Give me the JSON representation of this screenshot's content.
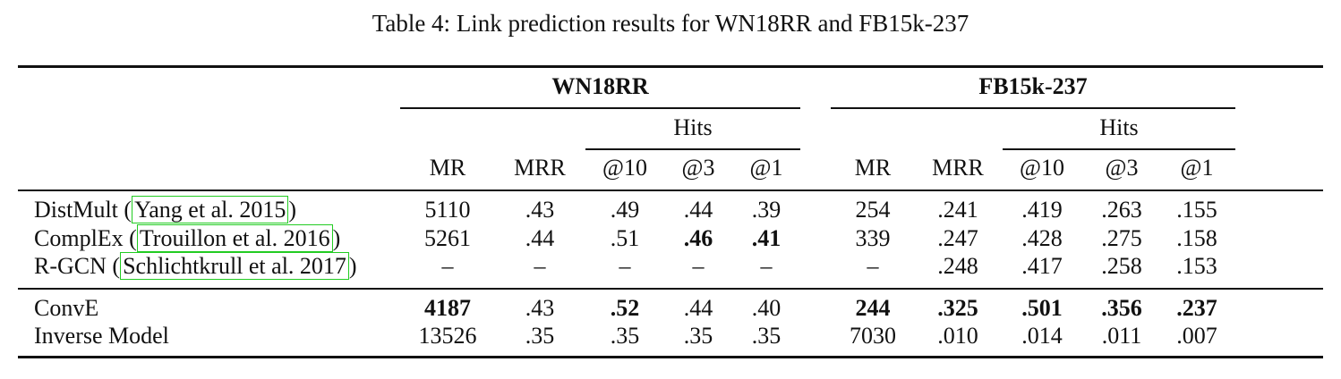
{
  "caption": "Table 4: Link prediction results for WN18RR and FB15k-237",
  "groups": [
    {
      "name": "WN18RR",
      "sub": "Hits"
    },
    {
      "name": "FB15k-237",
      "sub": "Hits"
    }
  ],
  "columns": [
    "MR",
    "MRR",
    "@10",
    "@3",
    "@1",
    "MR",
    "MRR",
    "@10",
    "@3",
    "@1"
  ],
  "rows": [
    {
      "model": "DistMult",
      "cite": "Yang et al. 2015",
      "values": [
        "5110",
        ".43",
        ".49",
        ".44",
        ".39",
        "254",
        ".241",
        ".419",
        ".263",
        ".155"
      ],
      "bold": []
    },
    {
      "model": "ComplEx",
      "cite": "Trouillon et al. 2016",
      "values": [
        "5261",
        ".44",
        ".51",
        ".46",
        ".41",
        "339",
        ".247",
        ".428",
        ".275",
        ".158"
      ],
      "bold": [
        3,
        4
      ]
    },
    {
      "model": "R-GCN",
      "cite": "Schlichtkrull et al. 2017",
      "values": [
        "–",
        "–",
        "–",
        "–",
        "–",
        "–",
        ".248",
        ".417",
        ".258",
        ".153"
      ],
      "bold": []
    },
    {
      "model": "ConvE",
      "cite": "",
      "values": [
        "4187",
        ".43",
        ".52",
        ".44",
        ".40",
        "244",
        ".325",
        ".501",
        ".356",
        ".237"
      ],
      "bold": [
        0,
        2,
        5,
        6,
        7,
        8,
        9
      ]
    },
    {
      "model": "Inverse Model",
      "cite": "",
      "values": [
        "13526",
        ".35",
        ".35",
        ".35",
        ".35",
        "7030",
        ".010",
        ".014",
        ".011",
        ".007"
      ],
      "bold": []
    }
  ]
}
